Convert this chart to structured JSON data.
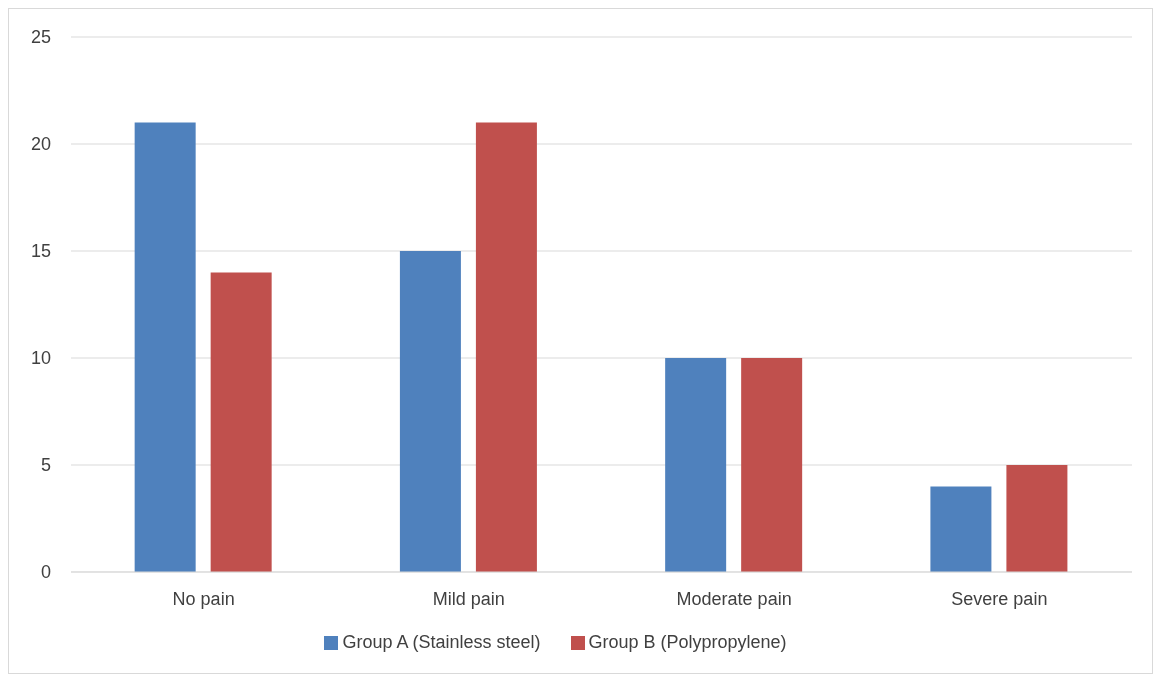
{
  "chart_data": {
    "type": "bar",
    "categories": [
      "No pain",
      "Mild pain",
      "Moderate pain",
      "Severe pain"
    ],
    "series": [
      {
        "name": "Group A (Stainless steel)",
        "color": "#4f81bd",
        "values": [
          21,
          15,
          10,
          4
        ]
      },
      {
        "name": "Group B (Polypropylene)",
        "color": "#c0504d",
        "values": [
          14,
          21,
          10,
          5
        ]
      }
    ],
    "ylim": [
      0,
      25
    ],
    "yticks": [
      0,
      5,
      10,
      15,
      20,
      25
    ],
    "grid": "y",
    "legend": "bottom"
  }
}
